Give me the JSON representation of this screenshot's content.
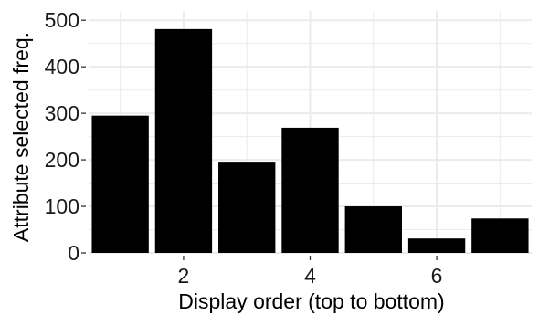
{
  "chart_data": {
    "type": "bar",
    "x": [
      1,
      2,
      3,
      4,
      5,
      6,
      7
    ],
    "values": [
      295,
      481,
      196,
      269,
      100,
      31,
      74
    ],
    "xlabel": "Display order (top to bottom)",
    "ylabel": "Attribute selected freq.",
    "xlim": [
      0.5,
      7.5
    ],
    "ylim": [
      0,
      520
    ],
    "x_ticks": [
      2,
      4,
      6
    ],
    "y_ticks": [
      0,
      100,
      200,
      300,
      400,
      500
    ],
    "x_tick_labels": [
      "2",
      "4",
      "6"
    ],
    "y_tick_labels": [
      "0",
      "100",
      "200",
      "300",
      "400",
      "500"
    ],
    "bar_color": "#000000",
    "grid": true,
    "grid_color": "#ebebeb"
  }
}
